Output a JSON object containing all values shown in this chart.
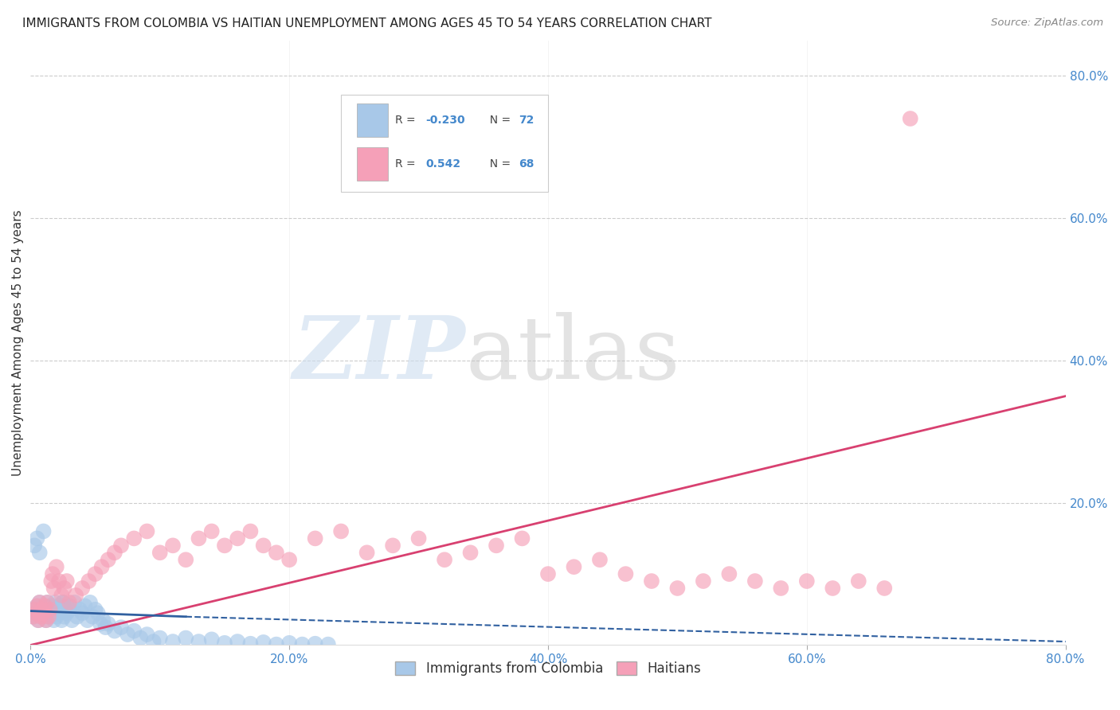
{
  "title": "IMMIGRANTS FROM COLOMBIA VS HAITIAN UNEMPLOYMENT AMONG AGES 45 TO 54 YEARS CORRELATION CHART",
  "source": "Source: ZipAtlas.com",
  "ylabel": "Unemployment Among Ages 45 to 54 years",
  "xlim": [
    0.0,
    0.8
  ],
  "ylim": [
    0.0,
    0.85
  ],
  "background_color": "#ffffff",
  "legend_R_colombia": "-0.230",
  "legend_N_colombia": "72",
  "legend_R_haitian": "0.542",
  "legend_N_haitian": "68",
  "colombia_color": "#a8c8e8",
  "haitian_color": "#f5a0b8",
  "colombia_line_color": "#3060a0",
  "haitian_line_color": "#d84070",
  "grid_color": "#cccccc",
  "axis_label_color": "#4488cc",
  "right_ytick_color": "#4488cc",
  "colombia_scatter_x": [
    0.002,
    0.003,
    0.004,
    0.005,
    0.006,
    0.007,
    0.008,
    0.009,
    0.01,
    0.011,
    0.012,
    0.013,
    0.014,
    0.015,
    0.016,
    0.017,
    0.018,
    0.019,
    0.02,
    0.021,
    0.022,
    0.023,
    0.024,
    0.025,
    0.026,
    0.027,
    0.028,
    0.03,
    0.032,
    0.034,
    0.036,
    0.038,
    0.04,
    0.042,
    0.044,
    0.046,
    0.048,
    0.05,
    0.052,
    0.054,
    0.056,
    0.058,
    0.06,
    0.065,
    0.07,
    0.075,
    0.08,
    0.085,
    0.09,
    0.095,
    0.1,
    0.11,
    0.12,
    0.13,
    0.14,
    0.15,
    0.16,
    0.17,
    0.18,
    0.19,
    0.2,
    0.21,
    0.22,
    0.23,
    0.003,
    0.005,
    0.007,
    0.01,
    0.015,
    0.02,
    0.025,
    0.03
  ],
  "colombia_scatter_y": [
    0.04,
    0.05,
    0.045,
    0.055,
    0.035,
    0.06,
    0.04,
    0.05,
    0.045,
    0.055,
    0.035,
    0.06,
    0.04,
    0.05,
    0.045,
    0.055,
    0.035,
    0.06,
    0.04,
    0.05,
    0.045,
    0.055,
    0.035,
    0.06,
    0.04,
    0.05,
    0.045,
    0.055,
    0.035,
    0.06,
    0.04,
    0.05,
    0.045,
    0.055,
    0.035,
    0.06,
    0.04,
    0.05,
    0.045,
    0.03,
    0.035,
    0.025,
    0.03,
    0.02,
    0.025,
    0.015,
    0.02,
    0.01,
    0.015,
    0.005,
    0.01,
    0.005,
    0.01,
    0.005,
    0.008,
    0.003,
    0.005,
    0.002,
    0.004,
    0.001,
    0.003,
    0.001,
    0.002,
    0.001,
    0.14,
    0.15,
    0.13,
    0.16,
    0.055,
    0.045,
    0.06,
    0.05
  ],
  "haitian_scatter_x": [
    0.002,
    0.003,
    0.004,
    0.005,
    0.006,
    0.007,
    0.008,
    0.009,
    0.01,
    0.011,
    0.012,
    0.013,
    0.014,
    0.015,
    0.016,
    0.017,
    0.018,
    0.02,
    0.022,
    0.024,
    0.026,
    0.028,
    0.03,
    0.035,
    0.04,
    0.045,
    0.05,
    0.055,
    0.06,
    0.065,
    0.07,
    0.08,
    0.09,
    0.1,
    0.11,
    0.12,
    0.13,
    0.14,
    0.15,
    0.16,
    0.17,
    0.18,
    0.19,
    0.2,
    0.22,
    0.24,
    0.26,
    0.28,
    0.3,
    0.32,
    0.34,
    0.36,
    0.38,
    0.4,
    0.42,
    0.44,
    0.46,
    0.48,
    0.5,
    0.52,
    0.54,
    0.56,
    0.58,
    0.6,
    0.62,
    0.64,
    0.66,
    0.68
  ],
  "haitian_scatter_y": [
    0.04,
    0.05,
    0.045,
    0.055,
    0.035,
    0.06,
    0.04,
    0.05,
    0.045,
    0.055,
    0.035,
    0.06,
    0.04,
    0.05,
    0.09,
    0.1,
    0.08,
    0.11,
    0.09,
    0.07,
    0.08,
    0.09,
    0.06,
    0.07,
    0.08,
    0.09,
    0.1,
    0.11,
    0.12,
    0.13,
    0.14,
    0.15,
    0.16,
    0.13,
    0.14,
    0.12,
    0.15,
    0.16,
    0.14,
    0.15,
    0.16,
    0.14,
    0.13,
    0.12,
    0.15,
    0.16,
    0.13,
    0.14,
    0.15,
    0.12,
    0.13,
    0.14,
    0.15,
    0.1,
    0.11,
    0.12,
    0.1,
    0.09,
    0.08,
    0.09,
    0.1,
    0.09,
    0.08,
    0.09,
    0.08,
    0.09,
    0.08,
    0.74
  ]
}
